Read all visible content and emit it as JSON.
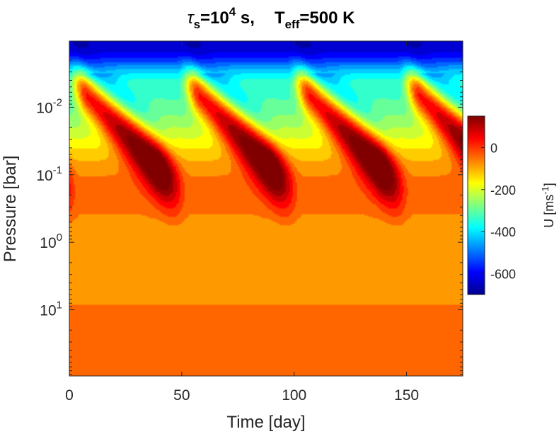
{
  "chart_data": {
    "type": "heatmap",
    "title": {
      "tau_symbol": "τ",
      "tau_sub": "s",
      "tau_eq": "=10",
      "tau_exp": "4",
      "tau_unit": " s,",
      "teff_main": "T",
      "teff_sub": "eff",
      "teff_value": "=500 K"
    },
    "xlabel": "Time [day]",
    "ylabel": "Pressure [bar]",
    "colorbar_label_main": "U [ms",
    "colorbar_label_exp": "-1",
    "colorbar_label_close": "]",
    "xlim": [
      0,
      175
    ],
    "xticks": [
      {
        "value": 0,
        "label": "0"
      },
      {
        "value": 50,
        "label": "50"
      },
      {
        "value": 100,
        "label": "100"
      },
      {
        "value": 150,
        "label": "150"
      }
    ],
    "ylim_log10_bar": [
      -2.98,
      1.98
    ],
    "yticks": [
      {
        "log10": -2,
        "base": "10",
        "exp": "-2"
      },
      {
        "log10": -1,
        "base": "10",
        "exp": "-1"
      },
      {
        "log10": 0,
        "base": "10",
        "exp": "0"
      },
      {
        "log10": 1,
        "base": "10",
        "exp": "1"
      }
    ],
    "colorbar_range": [
      -700,
      150
    ],
    "colorbar_ticks": [
      {
        "value": 0,
        "label": "0"
      },
      {
        "value": -200,
        "label": "-200"
      },
      {
        "value": -400,
        "label": "-400"
      },
      {
        "value": -600,
        "label": "-600"
      }
    ],
    "oscillation_period_day": 49,
    "description_of_field": {
      "jet_peak_times_day": [
        12,
        62,
        111,
        160
      ],
      "deep_layer_u_ms": -40,
      "mid_layer_u_ms": -80,
      "top_layer_u_ms": -650
    }
  }
}
